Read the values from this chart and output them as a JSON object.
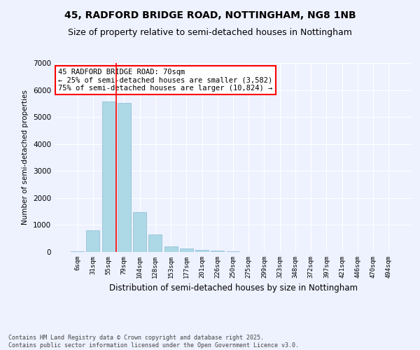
{
  "title1": "45, RADFORD BRIDGE ROAD, NOTTINGHAM, NG8 1NB",
  "title2": "Size of property relative to semi-detached houses in Nottingham",
  "xlabel": "Distribution of semi-detached houses by size in Nottingham",
  "ylabel": "Number of semi-detached properties",
  "categories": [
    "6sqm",
    "31sqm",
    "55sqm",
    "79sqm",
    "104sqm",
    "128sqm",
    "153sqm",
    "177sqm",
    "201sqm",
    "226sqm",
    "250sqm",
    "275sqm",
    "299sqm",
    "323sqm",
    "348sqm",
    "372sqm",
    "397sqm",
    "421sqm",
    "446sqm",
    "470sqm",
    "494sqm"
  ],
  "values": [
    30,
    810,
    5580,
    5530,
    1480,
    640,
    220,
    130,
    90,
    55,
    30,
    0,
    0,
    0,
    0,
    0,
    0,
    0,
    0,
    0,
    0
  ],
  "bar_color": "#add8e6",
  "bar_edgecolor": "#89bdd3",
  "redline_x": 2.5,
  "annotation_text": "45 RADFORD BRIDGE ROAD: 70sqm\n← 25% of semi-detached houses are smaller (3,582)\n75% of semi-detached houses are larger (10,824) →",
  "footer": "Contains HM Land Registry data © Crown copyright and database right 2025.\nContains public sector information licensed under the Open Government Licence v3.0.",
  "ylim": [
    0,
    7000
  ],
  "bg_color": "#eef2ff",
  "title_fontsize": 10,
  "subtitle_fontsize": 9
}
